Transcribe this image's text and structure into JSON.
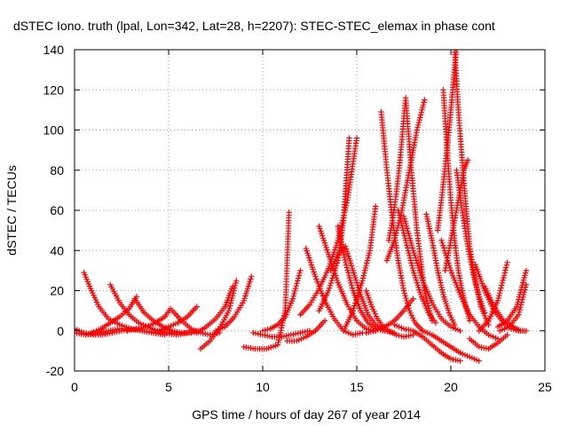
{
  "chart_data": {
    "type": "scatter",
    "title": "dSTEC Iono. truth (lpal, Lon=342, Lat=28, h=2207): STEC-STEC_elemax in phase cont",
    "xlabel": "GPS time / hours of day 267 of year 2014",
    "ylabel": "dSTEC  / TECUs",
    "xlim": [
      0,
      25
    ],
    "ylim": [
      -20,
      140
    ],
    "xticks": [
      0,
      5,
      10,
      15,
      20,
      25
    ],
    "yticks": [
      -20,
      0,
      20,
      40,
      60,
      80,
      100,
      120,
      140
    ],
    "grid": true,
    "marker": "+",
    "color": "#ff0000",
    "series": [
      {
        "x": [
          0.0,
          0.5,
          1.0,
          1.5,
          2.0,
          2.5,
          3.0
        ],
        "y": [
          1,
          -1,
          -2,
          -2,
          -1,
          0,
          1
        ]
      },
      {
        "x": [
          0.0,
          0.6,
          1.2,
          1.8,
          2.4,
          3.0,
          3.6,
          4.2,
          4.8
        ],
        "y": [
          -1,
          -2,
          -1,
          0,
          1,
          1,
          0,
          -1,
          -2
        ]
      },
      {
        "x": [
          0.5,
          0.9,
          1.3,
          1.8,
          2.4,
          3.0,
          3.6,
          4.2,
          4.8,
          5.4,
          6.0,
          6.5
        ],
        "y": [
          29,
          20,
          12,
          6,
          3,
          1,
          0,
          -1,
          -1,
          -2,
          -1,
          0
        ]
      },
      {
        "x": [
          1.9,
          2.4,
          2.9,
          3.4,
          3.9,
          4.4,
          4.9,
          5.3
        ],
        "y": [
          23,
          14,
          8,
          4,
          2,
          0,
          -1,
          -1
        ]
      },
      {
        "x": [
          0.9,
          1.4,
          1.9,
          2.4,
          2.9,
          3.3
        ],
        "y": [
          -1,
          1,
          4,
          7,
          11,
          17
        ]
      },
      {
        "x": [
          3.2,
          3.7,
          4.2,
          4.7,
          5.2,
          5.7,
          6.2,
          6.6
        ],
        "y": [
          16,
          9,
          5,
          2,
          0,
          -1,
          -1,
          0
        ]
      },
      {
        "x": [
          2.8,
          3.3,
          3.8,
          4.3,
          4.8,
          5.1
        ],
        "y": [
          0,
          1,
          2,
          4,
          7,
          11
        ]
      },
      {
        "x": [
          4.5,
          5.0,
          5.5,
          6.0,
          6.5
        ],
        "y": [
          0,
          2,
          4,
          7,
          12
        ]
      },
      {
        "x": [
          5.2,
          5.7,
          6.2,
          6.7,
          7.2,
          7.7
        ],
        "y": [
          10,
          5,
          1,
          -1,
          -2,
          -1
        ]
      },
      {
        "x": [
          6.7,
          7.2,
          7.7,
          8.2,
          8.6
        ],
        "y": [
          -9,
          -5,
          1,
          10,
          25
        ]
      },
      {
        "x": [
          6.5,
          7.0,
          7.5,
          8.0,
          8.4
        ],
        "y": [
          -1,
          2,
          6,
          12,
          22
        ]
      },
      {
        "x": [
          7.5,
          8.0,
          8.5,
          9.0,
          9.4
        ],
        "y": [
          0,
          2,
          7,
          15,
          27
        ]
      },
      {
        "x": [
          9.0,
          9.6,
          10.2,
          10.8,
          11.2,
          11.4
        ],
        "y": [
          -8,
          -9,
          -9,
          -7,
          10,
          59
        ]
      },
      {
        "x": [
          9.5,
          10.0,
          10.5,
          11.0,
          11.5,
          12.0,
          12.5
        ],
        "y": [
          -1,
          -2,
          -3,
          -3,
          -2,
          -1,
          0
        ]
      },
      {
        "x": [
          10.0,
          10.4,
          10.8,
          11.2,
          11.6,
          12.0
        ],
        "y": [
          0,
          1,
          3,
          7,
          16,
          30
        ]
      },
      {
        "x": [
          11.3,
          11.8,
          12.3,
          12.8,
          13.3
        ],
        "y": [
          -5,
          -5,
          -3,
          0,
          5
        ]
      },
      {
        "x": [
          12.0,
          12.5,
          13.0,
          13.5,
          14.0,
          14.5,
          15.0
        ],
        "y": [
          8,
          13,
          21,
          31,
          45,
          65,
          96
        ]
      },
      {
        "x": [
          12.3,
          12.8,
          13.3,
          13.8,
          14.3,
          14.8,
          15.3
        ],
        "y": [
          41,
          27,
          15,
          6,
          0,
          -2,
          -1
        ]
      },
      {
        "x": [
          13.0,
          13.5,
          14.0,
          14.5,
          15.0,
          15.5,
          16.0
        ],
        "y": [
          52,
          38,
          24,
          13,
          5,
          1,
          0
        ]
      },
      {
        "x": [
          13.0,
          13.5,
          14.0,
          14.3,
          14.6
        ],
        "y": [
          10,
          20,
          35,
          55,
          96
        ]
      },
      {
        "x": [
          14.0,
          14.4,
          14.8,
          15.2,
          15.6,
          16.0,
          16.5
        ],
        "y": [
          52,
          34,
          20,
          10,
          4,
          1,
          0
        ]
      },
      {
        "x": [
          14.3,
          14.8,
          15.3,
          15.7,
          16.0
        ],
        "y": [
          0,
          10,
          25,
          40,
          62
        ]
      },
      {
        "x": [
          13.6,
          14.0,
          14.4,
          14.8,
          15.2,
          15.6,
          16.0,
          16.5,
          17.0
        ],
        "y": [
          30,
          38,
          42,
          30,
          18,
          8,
          3,
          0,
          -1
        ]
      },
      {
        "x": [
          15.5,
          16.0,
          16.5,
          17.0,
          17.5,
          18.0
        ],
        "y": [
          -1,
          0,
          2,
          5,
          10,
          16
        ]
      },
      {
        "x": [
          15.5,
          15.8,
          16.1,
          16.4,
          16.7,
          17.1,
          17.5,
          18.0
        ],
        "y": [
          20,
          12,
          6,
          2,
          0,
          -2,
          -3,
          -2
        ]
      },
      {
        "x": [
          16.3,
          16.6,
          16.9,
          17.2,
          17.5,
          17.8,
          18.1,
          18.5
        ],
        "y": [
          109,
          80,
          55,
          35,
          20,
          10,
          4,
          0
        ]
      },
      {
        "x": [
          16.7,
          16.9,
          17.1,
          17.3,
          17.6,
          17.9,
          18.2,
          18.6,
          19.0
        ],
        "y": [
          45,
          55,
          68,
          85,
          116,
          80,
          50,
          20,
          5
        ]
      },
      {
        "x": [
          16.6,
          17.0,
          17.4,
          17.8,
          18.2,
          18.6
        ],
        "y": [
          35,
          45,
          60,
          80,
          100,
          115
        ]
      },
      {
        "x": [
          17.2,
          17.6,
          18.0,
          18.4,
          18.8,
          19.2
        ],
        "y": [
          60,
          45,
          30,
          18,
          9,
          4
        ]
      },
      {
        "x": [
          17.5,
          18.0,
          18.5,
          19.0,
          19.5,
          20.0,
          20.5
        ],
        "y": [
          57,
          40,
          25,
          14,
          6,
          2,
          0
        ]
      },
      {
        "x": [
          17.0,
          17.5,
          18.0,
          18.5,
          19.0,
          19.5,
          20.0,
          20.5
        ],
        "y": [
          3,
          1,
          0,
          -3,
          -7,
          -11,
          -14,
          -15
        ]
      },
      {
        "x": [
          18.5,
          19.0,
          19.5,
          20.0,
          20.5,
          21.0,
          21.5
        ],
        "y": [
          0,
          -2,
          -5,
          -8,
          -11,
          -13,
          -15
        ]
      },
      {
        "x": [
          18.7,
          19.0,
          19.3,
          19.6,
          19.9,
          20.2
        ],
        "y": [
          58,
          45,
          30,
          18,
          9,
          3
        ]
      },
      {
        "x": [
          19.3,
          19.5,
          19.7,
          19.9,
          20.1,
          20.3
        ],
        "y": [
          50,
          65,
          82,
          100,
          120,
          140
        ]
      },
      {
        "x": [
          19.6,
          19.8,
          20.0,
          20.2,
          20.4,
          20.6,
          20.8,
          21.0
        ],
        "y": [
          120,
          90,
          65,
          45,
          30,
          20,
          12,
          5
        ]
      },
      {
        "x": [
          20.2,
          20.4,
          20.6,
          20.8,
          21.0,
          21.3,
          21.6,
          22.0
        ],
        "y": [
          140,
          110,
          85,
          62,
          42,
          25,
          12,
          3
        ]
      },
      {
        "x": [
          20.3,
          20.6,
          20.9,
          21.2,
          21.5,
          21.8
        ],
        "y": [
          80,
          60,
          42,
          28,
          17,
          9
        ]
      },
      {
        "x": [
          19.7,
          19.9,
          20.1,
          20.3,
          20.5,
          20.7,
          20.9
        ],
        "y": [
          30,
          40,
          50,
          60,
          70,
          80,
          85
        ]
      },
      {
        "x": [
          19.5,
          20.0,
          20.5,
          21.0,
          21.5,
          22.0,
          22.5
        ],
        "y": [
          45,
          30,
          18,
          8,
          2,
          -2,
          -4
        ]
      },
      {
        "x": [
          21.0,
          21.5,
          22.0,
          22.5,
          23.0
        ],
        "y": [
          -4,
          -8,
          -9,
          -6,
          -2
        ]
      },
      {
        "x": [
          21.3,
          21.8,
          22.3,
          22.8,
          23.2,
          23.6
        ],
        "y": [
          33,
          20,
          10,
          4,
          1,
          0
        ]
      },
      {
        "x": [
          21.8,
          22.3,
          22.8,
          23.3,
          23.7,
          24.0
        ],
        "y": [
          22,
          12,
          5,
          2,
          0,
          0
        ]
      },
      {
        "x": [
          21.5,
          22.0,
          22.5,
          23.0
        ],
        "y": [
          0,
          5,
          15,
          34
        ]
      },
      {
        "x": [
          22.5,
          23.0,
          23.5,
          24.0
        ],
        "y": [
          2,
          5,
          12,
          30
        ]
      },
      {
        "x": [
          22.6,
          23.1,
          23.6,
          24.0
        ],
        "y": [
          0,
          2,
          8,
          23
        ]
      }
    ]
  }
}
